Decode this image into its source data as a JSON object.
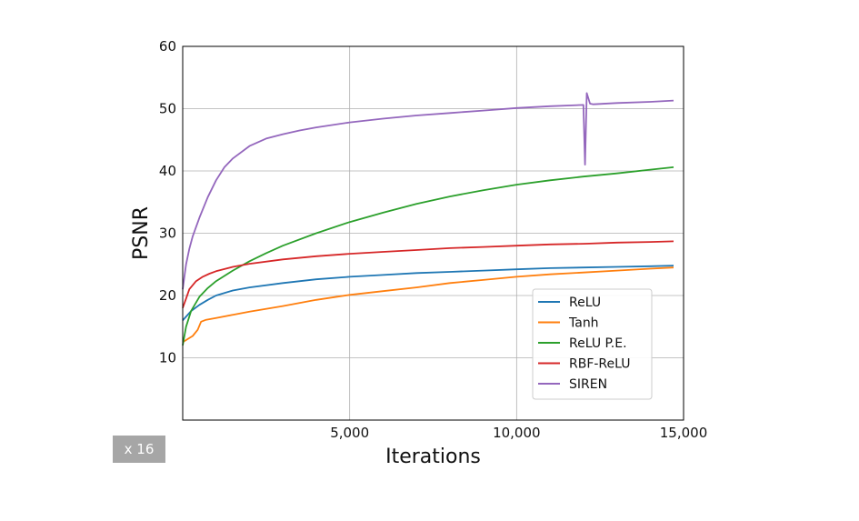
{
  "chart_data": {
    "type": "line",
    "title": "",
    "xlabel": "Iterations",
    "ylabel": "PSNR",
    "xlim": [
      0,
      15000
    ],
    "ylim": [
      0,
      60
    ],
    "xticks": [
      5000,
      10000,
      15000
    ],
    "xtick_labels": [
      "5,000",
      "10,000",
      "15,000"
    ],
    "yticks": [
      10,
      20,
      30,
      40,
      50,
      60
    ],
    "ytick_labels": [
      "10",
      "20",
      "30",
      "40",
      "50",
      "60"
    ],
    "grid": true,
    "legend_position": "bottom-right",
    "series": [
      {
        "name": "ReLU",
        "color": "#1f77b4",
        "x": [
          0,
          250,
          500,
          750,
          1000,
          1500,
          2000,
          3000,
          4000,
          5000,
          6000,
          7000,
          8000,
          9000,
          10000,
          11000,
          12000,
          13000,
          14000,
          14700
        ],
        "y": [
          16,
          17.5,
          18.5,
          19.3,
          20,
          20.8,
          21.3,
          22,
          22.6,
          23,
          23.3,
          23.6,
          23.8,
          24,
          24.2,
          24.4,
          24.5,
          24.6,
          24.7,
          24.8
        ]
      },
      {
        "name": "Tanh",
        "color": "#ff7f0e",
        "x": [
          0,
          150,
          300,
          450,
          550,
          700,
          1000,
          1500,
          2000,
          3000,
          4000,
          5000,
          6000,
          7000,
          8000,
          9000,
          10000,
          11000,
          12000,
          13000,
          14000,
          14700
        ],
        "y": [
          12.5,
          13,
          13.5,
          14.5,
          15.8,
          16.1,
          16.4,
          16.9,
          17.4,
          18.3,
          19.3,
          20.1,
          20.7,
          21.3,
          22,
          22.5,
          23,
          23.4,
          23.7,
          24,
          24.3,
          24.5
        ]
      },
      {
        "name": "ReLU P.E.",
        "color": "#2ca02c",
        "x": [
          0,
          100,
          250,
          500,
          750,
          1000,
          1500,
          2000,
          2500,
          3000,
          4000,
          5000,
          6000,
          7000,
          8000,
          9000,
          10000,
          11000,
          12000,
          13000,
          14000,
          14700
        ],
        "y": [
          12,
          15,
          17.5,
          19.8,
          21.2,
          22.3,
          24,
          25.5,
          26.8,
          28,
          30,
          31.8,
          33.3,
          34.7,
          35.9,
          36.9,
          37.8,
          38.5,
          39.1,
          39.6,
          40.2,
          40.6
        ]
      },
      {
        "name": "RBF-ReLU",
        "color": "#d62728",
        "x": [
          0,
          100,
          200,
          400,
          600,
          800,
          1000,
          1500,
          2000,
          3000,
          4000,
          5000,
          6000,
          7000,
          8000,
          9000,
          10000,
          11000,
          12000,
          13000,
          14000,
          14700
        ],
        "y": [
          18,
          19.5,
          21,
          22.3,
          23,
          23.5,
          23.9,
          24.6,
          25.1,
          25.8,
          26.3,
          26.7,
          27,
          27.3,
          27.6,
          27.8,
          28,
          28.2,
          28.3,
          28.5,
          28.6,
          28.7
        ]
      },
      {
        "name": "SIREN",
        "color": "#9467bd",
        "x": [
          0,
          100,
          200,
          300,
          500,
          750,
          1000,
          1250,
          1500,
          2000,
          2500,
          3000,
          3500,
          4000,
          5000,
          6000,
          7000,
          8000,
          9000,
          10000,
          11000,
          12000,
          12050,
          12100,
          12200,
          12300,
          13000,
          14000,
          14700
        ],
        "y": [
          21,
          25,
          27.5,
          29.5,
          32.5,
          35.8,
          38.5,
          40.6,
          42,
          44,
          45.2,
          45.9,
          46.5,
          47,
          47.8,
          48.4,
          48.9,
          49.3,
          49.7,
          50.1,
          50.4,
          50.6,
          41,
          52.5,
          50.8,
          50.7,
          50.9,
          51.1,
          51.3
        ]
      }
    ]
  },
  "badge": {
    "label": "x 16"
  }
}
